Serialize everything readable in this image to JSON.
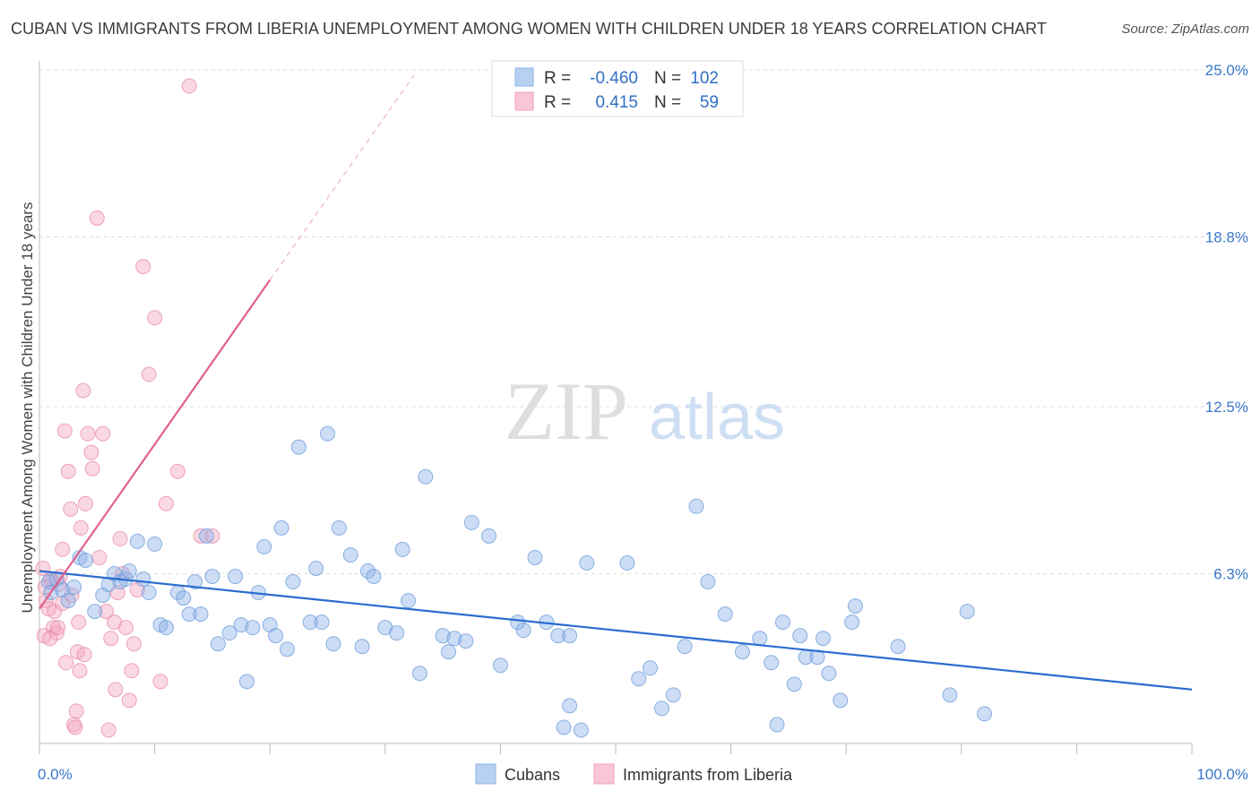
{
  "title": "CUBAN VS IMMIGRANTS FROM LIBERIA UNEMPLOYMENT AMONG WOMEN WITH CHILDREN UNDER 18 YEARS CORRELATION CHART",
  "source": "Source: ZipAtlas.com",
  "watermark": {
    "zip": "ZIP",
    "atlas": "atlas"
  },
  "chart_data": {
    "type": "scatter",
    "ylabel": "Unemployment Among Women with Children Under 18 years",
    "xlim": [
      0,
      100
    ],
    "ylim": [
      0,
      25
    ],
    "x_tick_labels": [
      "0.0%",
      "100.0%"
    ],
    "y_ticks": [
      6.3,
      12.5,
      18.8,
      25.0
    ],
    "y_tick_labels": [
      "6.3%",
      "12.5%",
      "18.8%",
      "25.0%"
    ],
    "grid": "horizontal dashed",
    "legend": {
      "placement": "top-center",
      "rows": [
        {
          "r_label": "R =",
          "r_value": "-0.460",
          "n_label": "N =",
          "n_value": "102"
        },
        {
          "r_label": "R =",
          "r_value": "0.415",
          "n_label": "N =",
          "n_value": "59"
        }
      ]
    },
    "series": [
      {
        "name": "Cubans",
        "color": "#8db4e8",
        "edge": "#6a9ad8",
        "trend": {
          "color": "#2b6ccf",
          "x": [
            0,
            100
          ],
          "y": [
            6.4,
            2.0
          ]
        },
        "points": [
          [
            0.8,
            6.0
          ],
          [
            1.5,
            6.1
          ],
          [
            1.0,
            5.6
          ],
          [
            2.0,
            5.7
          ],
          [
            2.5,
            5.3
          ],
          [
            3.5,
            6.9
          ],
          [
            4.0,
            6.8
          ],
          [
            3.0,
            5.8
          ],
          [
            4.8,
            4.9
          ],
          [
            5.5,
            5.5
          ],
          [
            6.0,
            5.9
          ],
          [
            6.5,
            6.3
          ],
          [
            7.0,
            6.0
          ],
          [
            7.5,
            6.1
          ],
          [
            7.8,
            6.4
          ],
          [
            8.5,
            7.5
          ],
          [
            9.0,
            6.1
          ],
          [
            9.5,
            5.6
          ],
          [
            10.0,
            7.4
          ],
          [
            10.5,
            4.4
          ],
          [
            11.0,
            4.3
          ],
          [
            12.0,
            5.6
          ],
          [
            12.5,
            5.4
          ],
          [
            13.0,
            4.8
          ],
          [
            13.5,
            6.0
          ],
          [
            14.0,
            4.8
          ],
          [
            14.5,
            7.7
          ],
          [
            15.0,
            6.2
          ],
          [
            15.5,
            3.7
          ],
          [
            16.5,
            4.1
          ],
          [
            17.0,
            6.2
          ],
          [
            17.5,
            4.4
          ],
          [
            18.0,
            2.3
          ],
          [
            18.5,
            4.3
          ],
          [
            19.0,
            5.6
          ],
          [
            19.5,
            7.3
          ],
          [
            20.0,
            4.4
          ],
          [
            20.5,
            4.0
          ],
          [
            21.0,
            8.0
          ],
          [
            21.5,
            3.5
          ],
          [
            22.0,
            6.0
          ],
          [
            22.5,
            11.0
          ],
          [
            23.5,
            4.5
          ],
          [
            24.0,
            6.5
          ],
          [
            24.5,
            4.5
          ],
          [
            25.0,
            11.5
          ],
          [
            25.5,
            3.7
          ],
          [
            26.0,
            8.0
          ],
          [
            27.0,
            7.0
          ],
          [
            28.0,
            3.6
          ],
          [
            28.5,
            6.4
          ],
          [
            29.0,
            6.2
          ],
          [
            30.0,
            4.3
          ],
          [
            31.0,
            4.1
          ],
          [
            31.5,
            7.2
          ],
          [
            32.0,
            5.3
          ],
          [
            33.0,
            2.6
          ],
          [
            33.5,
            9.9
          ],
          [
            35.0,
            4.0
          ],
          [
            35.5,
            3.4
          ],
          [
            36.0,
            3.9
          ],
          [
            37.0,
            3.8
          ],
          [
            37.5,
            8.2
          ],
          [
            39.0,
            7.7
          ],
          [
            40.0,
            2.9
          ],
          [
            41.5,
            4.5
          ],
          [
            42.0,
            4.2
          ],
          [
            43.0,
            6.9
          ],
          [
            44.0,
            4.5
          ],
          [
            45.0,
            4.0
          ],
          [
            46.0,
            1.4
          ],
          [
            45.5,
            0.6
          ],
          [
            47.0,
            0.5
          ],
          [
            47.5,
            6.7
          ],
          [
            51.0,
            6.7
          ],
          [
            52.0,
            2.4
          ],
          [
            53.0,
            2.8
          ],
          [
            54.0,
            1.3
          ],
          [
            55.0,
            1.8
          ],
          [
            56.0,
            3.6
          ],
          [
            57.0,
            8.8
          ],
          [
            58.0,
            6.0
          ],
          [
            59.5,
            4.8
          ],
          [
            61.0,
            3.4
          ],
          [
            62.5,
            3.9
          ],
          [
            63.5,
            3.0
          ],
          [
            64.0,
            0.7
          ],
          [
            64.5,
            4.5
          ],
          [
            65.5,
            2.2
          ],
          [
            66.0,
            4.0
          ],
          [
            66.5,
            3.2
          ],
          [
            67.5,
            3.2
          ],
          [
            68.0,
            3.9
          ],
          [
            68.5,
            2.6
          ],
          [
            69.5,
            1.6
          ],
          [
            70.5,
            4.5
          ],
          [
            70.8,
            5.1
          ],
          [
            74.5,
            3.6
          ],
          [
            79.0,
            1.8
          ],
          [
            80.5,
            4.9
          ],
          [
            82.0,
            1.1
          ],
          [
            46.0,
            4.0
          ]
        ]
      },
      {
        "name": "Immigrants from Liberia",
        "color": "#f5a8c0",
        "edge": "#e888a8",
        "trend": {
          "color": "#e0608e",
          "x": [
            0,
            20
          ],
          "y": [
            5.0,
            17.2
          ],
          "dash_x": [
            20,
            32.5
          ],
          "dash_y": [
            17.2,
            24.8
          ]
        },
        "points": [
          [
            0.3,
            6.5
          ],
          [
            0.5,
            5.8
          ],
          [
            0.6,
            5.3
          ],
          [
            0.8,
            5.0
          ],
          [
            1.0,
            6.1
          ],
          [
            1.2,
            4.3
          ],
          [
            1.3,
            4.9
          ],
          [
            1.5,
            4.1
          ],
          [
            1.6,
            4.3
          ],
          [
            1.7,
            5.9
          ],
          [
            1.8,
            6.2
          ],
          [
            2.0,
            7.2
          ],
          [
            2.0,
            5.2
          ],
          [
            2.2,
            11.6
          ],
          [
            2.5,
            10.1
          ],
          [
            2.7,
            8.7
          ],
          [
            3.0,
            0.7
          ],
          [
            3.1,
            0.6
          ],
          [
            3.2,
            1.2
          ],
          [
            3.3,
            3.4
          ],
          [
            3.4,
            4.5
          ],
          [
            3.5,
            2.7
          ],
          [
            3.6,
            8.0
          ],
          [
            3.8,
            13.1
          ],
          [
            3.9,
            3.3
          ],
          [
            4.0,
            8.9
          ],
          [
            4.2,
            11.5
          ],
          [
            4.5,
            10.8
          ],
          [
            4.6,
            10.2
          ],
          [
            5.0,
            19.5
          ],
          [
            5.2,
            6.9
          ],
          [
            5.5,
            11.5
          ],
          [
            5.8,
            4.9
          ],
          [
            6.0,
            0.5
          ],
          [
            6.2,
            3.9
          ],
          [
            6.5,
            4.5
          ],
          [
            6.8,
            5.6
          ],
          [
            7.0,
            7.6
          ],
          [
            7.2,
            6.3
          ],
          [
            7.5,
            4.3
          ],
          [
            7.8,
            1.6
          ],
          [
            8.0,
            2.7
          ],
          [
            8.2,
            3.7
          ],
          [
            8.5,
            5.7
          ],
          [
            9.0,
            17.7
          ],
          [
            9.5,
            13.7
          ],
          [
            10.0,
            15.8
          ],
          [
            10.5,
            2.3
          ],
          [
            11.0,
            8.9
          ],
          [
            12.0,
            10.1
          ],
          [
            13.0,
            24.4
          ],
          [
            14.0,
            7.7
          ],
          [
            15.0,
            7.7
          ],
          [
            0.4,
            4.0
          ],
          [
            0.9,
            3.9
          ],
          [
            1.1,
            6.0
          ],
          [
            2.3,
            3.0
          ],
          [
            2.8,
            5.5
          ],
          [
            6.6,
            2.0
          ]
        ]
      }
    ]
  }
}
